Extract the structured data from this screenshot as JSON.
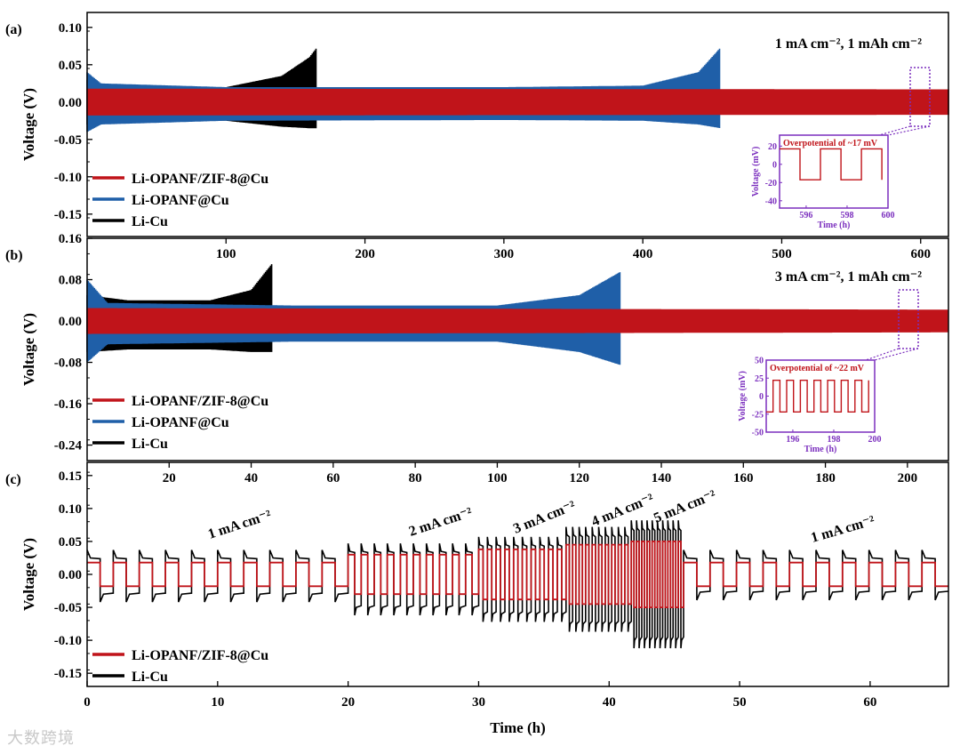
{
  "colors": {
    "red": "#c0141a",
    "blue": "#1f5fa8",
    "black": "#000000",
    "purple": "#7b2fbe"
  },
  "watermark": "大数跨境",
  "chart_data": [
    {
      "panel": "(a)",
      "type": "line",
      "condition": "1 mA cm⁻², 1 mAh cm⁻²",
      "ylabel": "Voltage (V)",
      "ylim": [
        -0.18,
        0.12
      ],
      "yticks": [
        "0.10",
        "0.05",
        "0.00",
        "-0.05",
        "-0.10",
        "-0.15"
      ],
      "xlim": [
        0,
        620
      ],
      "xtick_labels": [
        "100",
        "200",
        "300",
        "400",
        "500",
        "600"
      ],
      "legend": [
        "Li-OPANF/ZIF-8@Cu",
        "Li-OPANF@Cu",
        "Li-Cu"
      ],
      "series": [
        {
          "name": "Li-OPANF/ZIF-8@Cu",
          "end_x": 620,
          "envelope_x": [
            0,
            620
          ],
          "envelope_upper": [
            0.018,
            0.017
          ],
          "envelope_lower": [
            -0.018,
            -0.017
          ]
        },
        {
          "name": "Li-OPANF@Cu",
          "end_x": 456,
          "envelope_x": [
            0,
            10,
            100,
            300,
            400,
            440,
            456
          ],
          "envelope_upper": [
            0.04,
            0.025,
            0.02,
            0.02,
            0.022,
            0.04,
            0.073
          ],
          "envelope_lower": [
            -0.04,
            -0.03,
            -0.025,
            -0.024,
            -0.025,
            -0.03,
            -0.035
          ]
        },
        {
          "name": "Li-Cu",
          "end_x": 165,
          "envelope_x": [
            0,
            10,
            100,
            140,
            160,
            165
          ],
          "envelope_upper": [
            0.03,
            0.02,
            0.02,
            0.035,
            0.06,
            0.072
          ],
          "envelope_lower": [
            -0.03,
            -0.025,
            -0.025,
            -0.033,
            -0.035,
            -0.035
          ]
        }
      ],
      "inset": {
        "title": "Overpotential of ~17 mV",
        "xlabel": "Time (h)",
        "ylabel": "Voltage (mV)",
        "xticks": [
          "596",
          "598",
          "600"
        ],
        "yticks": [
          "20",
          "0",
          "-20",
          "-40"
        ],
        "amplitude_mV": 17
      }
    },
    {
      "panel": "(b)",
      "type": "line",
      "condition": "3 mA cm⁻², 1 mAh cm⁻²",
      "ylabel": "Voltage (V)",
      "ylim": [
        -0.27,
        0.16
      ],
      "yticks": [
        "0.16",
        "0.08",
        "0.00",
        "-0.08",
        "-0.16",
        "-0.24"
      ],
      "xlim": [
        0,
        210
      ],
      "xtick_labels": [
        "20",
        "40",
        "60",
        "80",
        "100",
        "120",
        "140",
        "160",
        "180",
        "200"
      ],
      "legend": [
        "Li-OPANF/ZIF-8@Cu",
        "Li-OPANF@Cu",
        "Li-Cu"
      ],
      "series": [
        {
          "name": "Li-OPANF/ZIF-8@Cu",
          "end_x": 210,
          "envelope_x": [
            0,
            210
          ],
          "envelope_upper": [
            0.025,
            0.022
          ],
          "envelope_lower": [
            -0.025,
            -0.022
          ]
        },
        {
          "name": "Li-OPANF@Cu",
          "end_x": 130,
          "envelope_x": [
            0,
            5,
            50,
            100,
            120,
            130
          ],
          "envelope_upper": [
            0.08,
            0.035,
            0.03,
            0.03,
            0.05,
            0.095
          ],
          "envelope_lower": [
            -0.08,
            -0.045,
            -0.04,
            -0.04,
            -0.06,
            -0.085
          ]
        },
        {
          "name": "Li-Cu",
          "end_x": 45,
          "envelope_x": [
            0,
            10,
            30,
            40,
            45
          ],
          "envelope_upper": [
            0.05,
            0.04,
            0.04,
            0.06,
            0.11
          ],
          "envelope_lower": [
            -0.06,
            -0.055,
            -0.055,
            -0.06,
            -0.06
          ]
        }
      ],
      "inset": {
        "title": "Overpotential of ~22 mV",
        "xlabel": "Time (h)",
        "ylabel": "Voltage (mV)",
        "xticks": [
          "196",
          "198",
          "200"
        ],
        "yticks": [
          "50",
          "25",
          "0",
          "-25",
          "-50"
        ],
        "amplitude_mV": 22
      }
    },
    {
      "panel": "(c)",
      "type": "line",
      "title": "",
      "xlabel": "Time (h)",
      "ylabel": "Voltage (V)",
      "ylim": [
        -0.17,
        0.17
      ],
      "yticks": [
        "0.15",
        "0.10",
        "0.05",
        "0.00",
        "-0.05",
        "-0.10",
        "-0.15"
      ],
      "xlim": [
        0,
        66
      ],
      "xtick_labels": [
        "0",
        "10",
        "20",
        "30",
        "40",
        "50",
        "60"
      ],
      "legend": [
        "Li-OPANF/ZIF-8@Cu",
        "Li-Cu"
      ],
      "rate_labels": [
        {
          "text": "1 mA cm⁻²",
          "x_h": 10
        },
        {
          "text": "2 mA cm⁻²",
          "x_h": 25
        },
        {
          "text": "3 mA cm⁻²",
          "x_h": 33
        },
        {
          "text": "4 mA cm⁻²",
          "x_h": 40
        },
        {
          "text": "5 mA cm⁻²",
          "x_h": 45
        },
        {
          "text": "1 mA cm⁻²",
          "x_h": 58
        }
      ],
      "segments": [
        {
          "rate_mA": 1,
          "t_start": 0,
          "t_end": 20,
          "cycles": 10,
          "red_amp": 0.018,
          "black_up": 0.025,
          "black_down": -0.03
        },
        {
          "rate_mA": 2,
          "t_start": 20,
          "t_end": 30,
          "cycles": 10,
          "red_amp": 0.03,
          "black_up": 0.035,
          "black_down": -0.05
        },
        {
          "rate_mA": 3,
          "t_start": 30,
          "t_end": 36.7,
          "cycles": 10,
          "red_amp": 0.038,
          "black_up": 0.045,
          "black_down": -0.06
        },
        {
          "rate_mA": 4,
          "t_start": 36.7,
          "t_end": 41.7,
          "cycles": 10,
          "red_amp": 0.045,
          "black_up": 0.06,
          "black_down": -0.075
        },
        {
          "rate_mA": 5,
          "t_start": 41.7,
          "t_end": 45.7,
          "cycles": 10,
          "red_amp": 0.05,
          "black_up": 0.07,
          "black_down": -0.1
        },
        {
          "rate_mA": 1,
          "t_start": 45.7,
          "t_end": 66,
          "cycles": 10,
          "red_amp": 0.018,
          "black_up": 0.025,
          "black_down": -0.027
        }
      ]
    }
  ]
}
